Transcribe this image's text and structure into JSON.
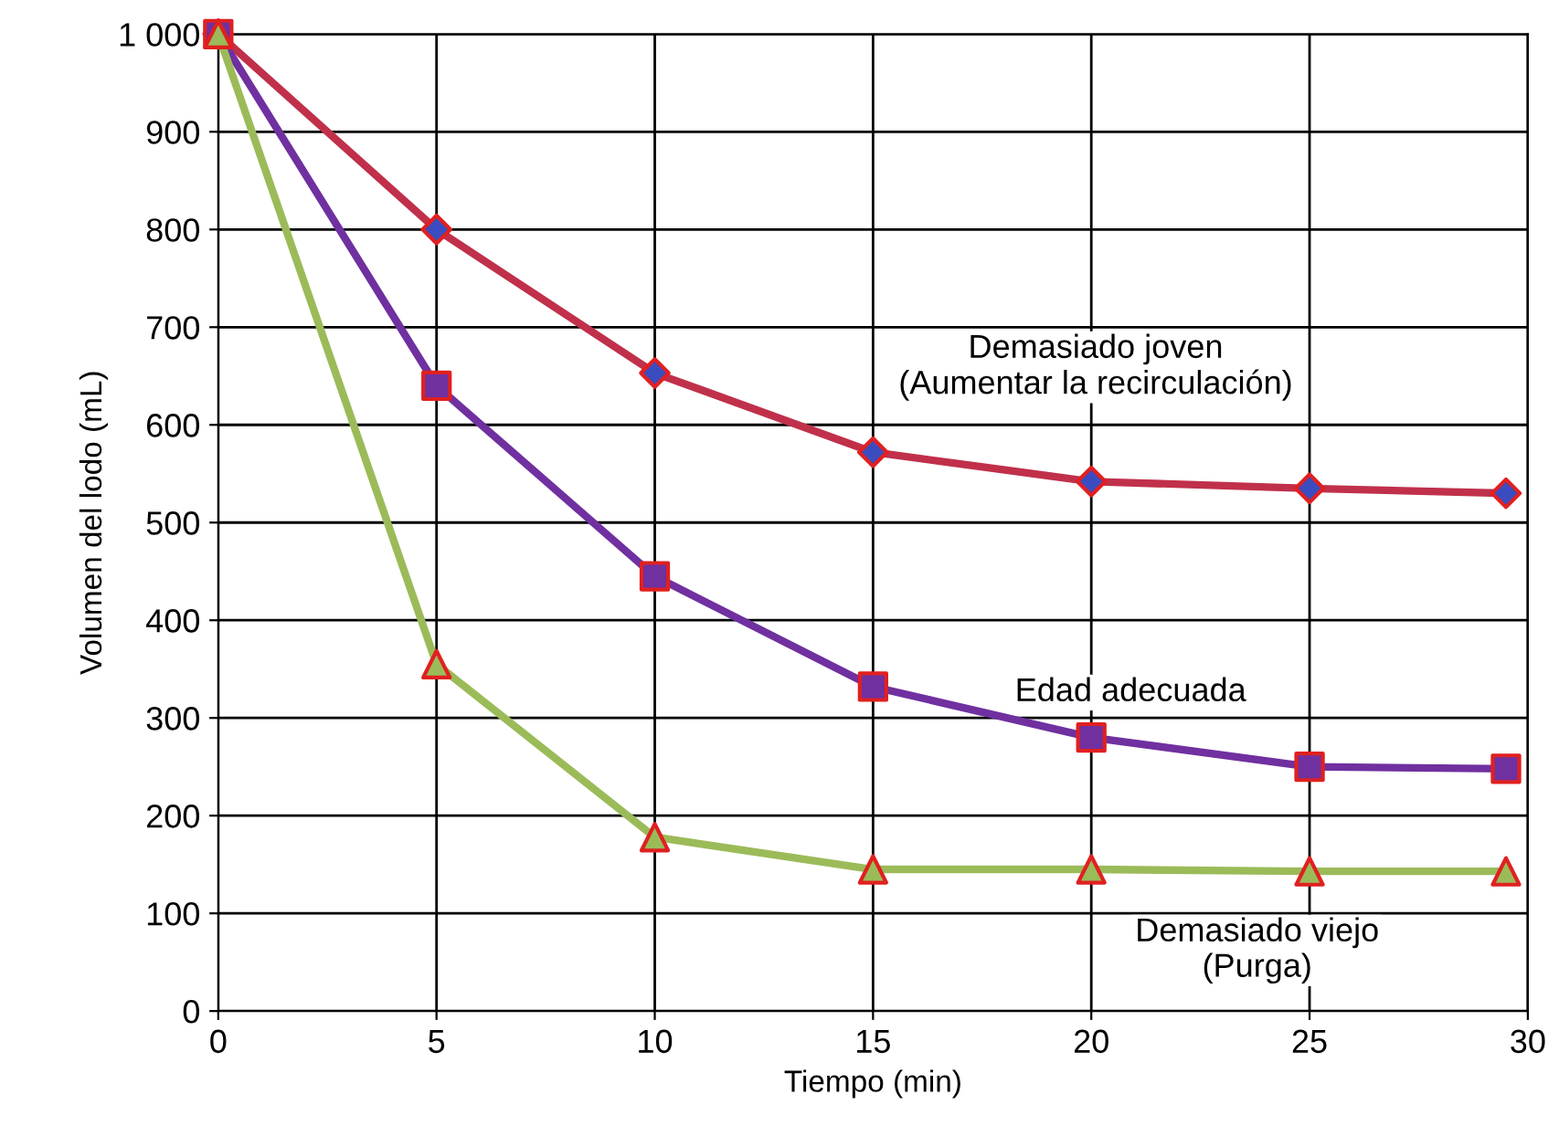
{
  "chart_data": {
    "type": "line",
    "xlabel": "Tiempo (min)",
    "ylabel": "Volumen del lodo (mL)",
    "xlim": [
      0,
      30
    ],
    "xticks": [
      0,
      5,
      10,
      15,
      20,
      25,
      30
    ],
    "ylim": [
      0,
      1000
    ],
    "yticks": [
      0,
      100,
      200,
      300,
      400,
      500,
      600,
      700,
      800,
      900,
      {
        "value": 1000,
        "label": "1 000"
      }
    ],
    "grid": true,
    "legend": false,
    "series": [
      {
        "name": "Demasiado joven\n(Aumentar la recirculación)",
        "color": "#c0304a",
        "marker": "diamond",
        "colors": [
          "#3b4cc0",
          "#3b4cc0",
          "#3b4cc0",
          "#3b4cc0",
          "#3b4cc0",
          "#3b4cc0",
          "#3b4cc0"
        ],
        "x": [
          0,
          5,
          10,
          15,
          20,
          25,
          29.5
        ],
        "values": [
          1000,
          800,
          653,
          572,
          542,
          535,
          530
        ]
      },
      {
        "name": "Edad adecuada",
        "color": "#7030a0",
        "marker": "square",
        "colors": [
          "#7030a0",
          "#7030a0",
          "#7030a0",
          "#7030a0",
          "#7030a0",
          "#7030a0",
          "#7030a0"
        ],
        "x": [
          0,
          5,
          10,
          15,
          20,
          25,
          29.5
        ],
        "values": [
          1000,
          640,
          445,
          332,
          280,
          250,
          248
        ]
      },
      {
        "name": "Demasiado viejo\n(Purga)",
        "color": "#9bbb59",
        "marker": "triangle",
        "colors": [
          "#9bbb59",
          "#9bbb59",
          "#9bbb59",
          "#9bbb59",
          "#9bbb59",
          "#9bbb59",
          "#9bbb59"
        ],
        "x": [
          0,
          5,
          10,
          15,
          20,
          25,
          29.5
        ],
        "values": [
          1000,
          355,
          178,
          145,
          145,
          143,
          143
        ]
      }
    ]
  }
}
